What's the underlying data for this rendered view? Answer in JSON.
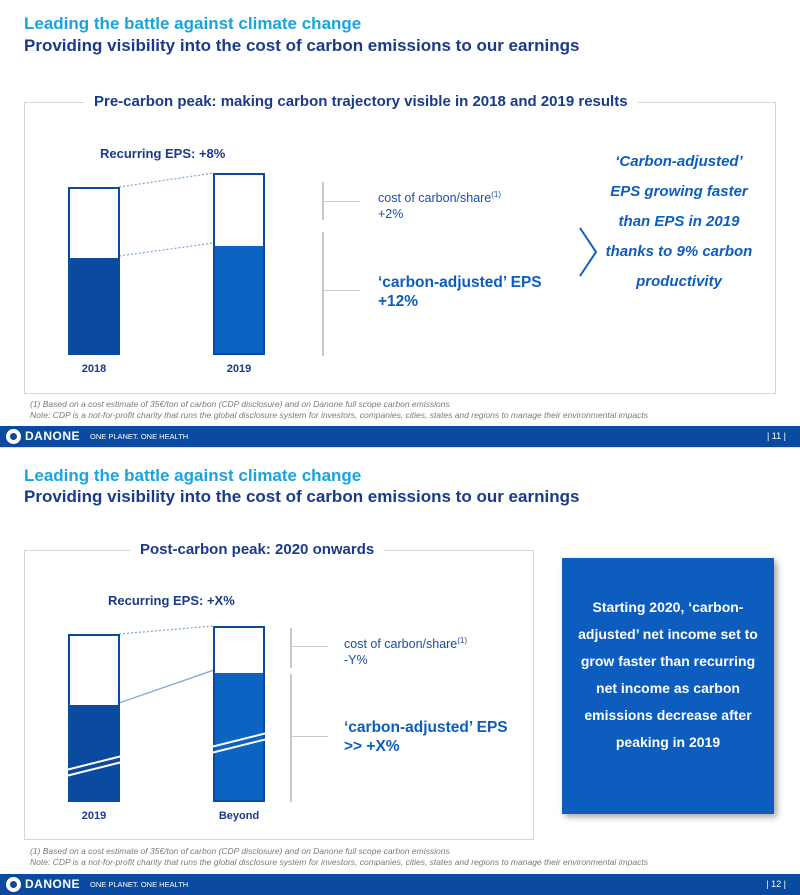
{
  "slide1": {
    "title_top": "Leading the battle against climate change",
    "title_sub": "Providing visibility into the cost of carbon emissions to our earnings",
    "frame_title": "Pre-carbon peak: making carbon trajectory visible in 2018 and 2019 results",
    "eps_label": "Recurring EPS: +8%",
    "cost_label": "cost of carbon/share",
    "cost_sup": "(1)",
    "cost_value": "+2%",
    "adj_label": "‘carbon-adjusted’ EPS",
    "adj_value": "+12%",
    "callout": "‘Carbon-adjusted’ EPS growing faster than EPS in 2019 thanks to 9% carbon productivity",
    "footnote1": "(1) Based on a cost estimate of 35€/ton of carbon (CDP disclosure) and on Danone full scope carbon emissions",
    "footnote2": "Note: CDP is a not-for-profit charity that runs the global disclosure system for investors, companies, cities, states and regions to manage their environmental impacts",
    "footer_brand": "DANONE",
    "footer_slogan": "ONE PLANET. ONE HEALTH",
    "page": "| 11 |"
  },
  "slide2": {
    "title_top": "Leading the battle against climate change",
    "title_sub": "Providing visibility into the cost of carbon emissions to our earnings",
    "frame_title": "Post-carbon peak: 2020 onwards",
    "eps_label": "Recurring EPS: +X%",
    "cost_label": "cost of carbon/share",
    "cost_sup": "(1)",
    "cost_value": "-Y%",
    "adj_label": "‘carbon-adjusted’ EPS",
    "adj_value": ">> +X%",
    "box_text": "Starting 2020, ‘carbon-adjusted’ net income set to grow faster than recurring net income as carbon emissions decrease after peaking in 2019",
    "footnote1": "(1) Based on a cost estimate of 35€/ton of carbon (CDP disclosure) and on Danone full scope carbon emissions",
    "footnote2": "Note: CDP is a not-for-profit charity that runs the global disclosure system for investors, companies, cities, states and regions to manage their environmental impacts",
    "footer_brand": "DANONE",
    "footer_slogan": "ONE PLANET. ONE HEALTH",
    "page": "| 12 |"
  },
  "chart_data": [
    {
      "type": "bar",
      "title": "Recurring EPS: +8%",
      "categories": [
        "2018",
        "2019"
      ],
      "series": [
        {
          "name": "carbon-adjusted EPS",
          "values": [
            58,
            65
          ]
        },
        {
          "name": "cost of carbon/share",
          "values": [
            42,
            43
          ]
        }
      ],
      "annotations": [
        "cost of carbon/share +2%",
        "‘carbon-adjusted’ EPS +12%"
      ]
    },
    {
      "type": "bar",
      "title": "Recurring EPS: +X%",
      "categories": [
        "2019",
        "Beyond"
      ],
      "series": [
        {
          "name": "carbon-adjusted EPS",
          "values": [
            58,
            74
          ]
        },
        {
          "name": "cost of carbon/share",
          "values": [
            42,
            26
          ]
        }
      ],
      "annotations": [
        "cost of carbon/share -Y%",
        "‘carbon-adjusted’ EPS >> +X%"
      ]
    }
  ],
  "colors": {
    "accent_light": "#1aa3dc",
    "navy": "#1a3a8a",
    "bar_dark": "#0a4a9f",
    "bar_light": "#0d63c2",
    "footer": "#0b4aa1"
  }
}
